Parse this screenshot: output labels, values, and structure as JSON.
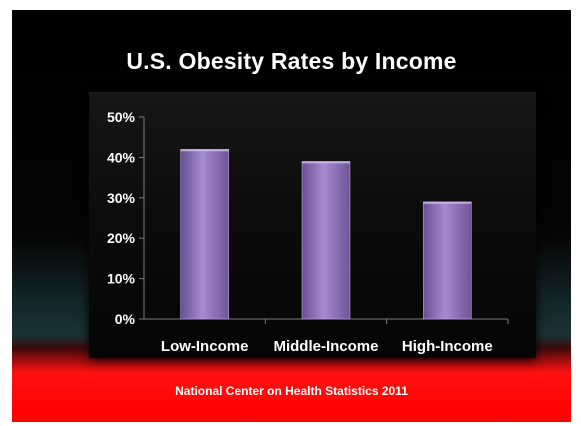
{
  "chart_data": {
    "type": "bar",
    "title": "U.S. Obesity Rates by Income",
    "categories": [
      "Low-Income",
      "Middle-Income",
      "High-Income"
    ],
    "values": [
      42,
      39,
      29
    ],
    "ylim": [
      0,
      50
    ],
    "yticks": [
      0,
      10,
      20,
      30,
      40,
      50
    ],
    "ytick_labels": [
      "0%",
      "10%",
      "20%",
      "30%",
      "40%",
      "50%"
    ],
    "xlabel": "",
    "ylabel": "",
    "grid": false,
    "legend": "none",
    "bar_color": "#8f6fb8"
  },
  "footer": {
    "source": "National Center  on Health Statistics 2011"
  },
  "colors": {
    "background_top": "#000000",
    "background_bottom": "#ff0000",
    "text": "#ffffff"
  }
}
